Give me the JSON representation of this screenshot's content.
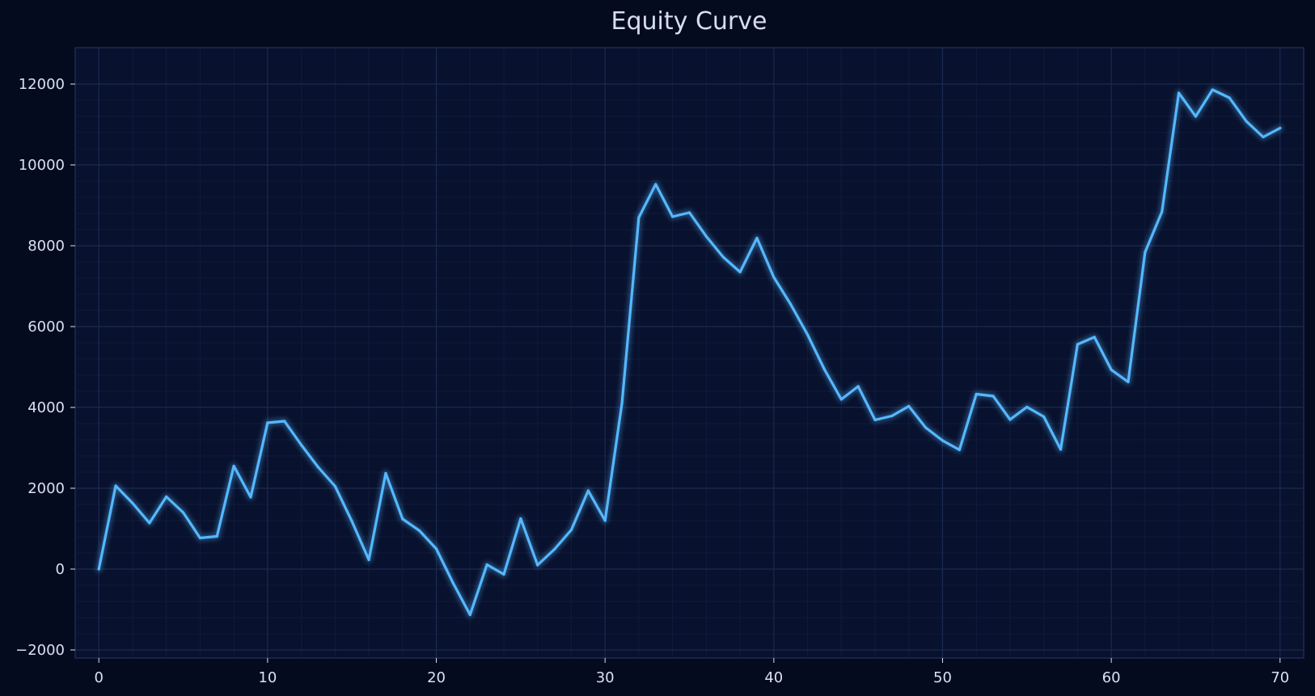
{
  "chart_data": {
    "type": "line",
    "title": "Equity Curve",
    "xlabel": "",
    "ylabel": "",
    "xlim": [
      -1.4,
      71.4
    ],
    "ylim": [
      -2200,
      12900
    ],
    "x_ticks": [
      0,
      10,
      20,
      30,
      40,
      50,
      60,
      70
    ],
    "y_ticks": [
      -2000,
      0,
      2000,
      4000,
      6000,
      8000,
      10000,
      12000
    ],
    "x_tick_labels": [
      "0",
      "10",
      "20",
      "30",
      "40",
      "50",
      "60",
      "70"
    ],
    "y_tick_labels": [
      "−2000",
      "0",
      "2000",
      "4000",
      "6000",
      "8000",
      "10000",
      "12000"
    ],
    "grid": true,
    "legend": "none",
    "colors": {
      "background": "#050b1e",
      "plot_background": "#08112d",
      "line": "#55b8ff",
      "grid_major": "#1b2a52",
      "grid_minor": "#111c3c",
      "frame": "#1d2b55",
      "text": "#d9e0f2"
    },
    "series": [
      {
        "x": [
          0,
          1,
          2,
          3,
          4,
          5,
          6,
          7,
          8,
          9,
          10,
          11,
          12,
          13,
          14,
          15,
          16,
          17,
          18,
          19,
          20,
          21,
          22,
          23,
          24,
          25,
          26,
          27,
          28,
          29,
          30,
          31,
          32,
          33,
          34,
          35,
          36,
          37,
          38,
          39,
          40,
          41,
          42,
          43,
          44,
          45,
          46,
          47,
          48,
          49,
          50,
          51,
          52,
          53,
          54,
          55,
          56,
          57,
          58,
          59,
          60,
          61,
          62,
          63,
          64,
          65,
          66,
          67,
          68,
          69,
          70
        ],
        "values": [
          0,
          2060,
          1630,
          1140,
          1790,
          1400,
          770,
          810,
          2550,
          1780,
          3620,
          3660,
          3070,
          2520,
          2050,
          1180,
          230,
          2370,
          1240,
          950,
          500,
          -350,
          -1130,
          110,
          -130,
          1250,
          100,
          490,
          970,
          1940,
          1200,
          4100,
          8700,
          9520,
          8720,
          8820,
          8230,
          7720,
          7350,
          8190,
          7220,
          6550,
          5800,
          4940,
          4200,
          4520,
          3690,
          3790,
          4030,
          3500,
          3180,
          2950,
          4330,
          4280,
          3700,
          4010,
          3770,
          2960,
          5560,
          5740,
          4930,
          4630,
          7840,
          8840,
          11780,
          11200,
          11860,
          11660,
          11080,
          10690,
          10910
        ]
      }
    ]
  }
}
